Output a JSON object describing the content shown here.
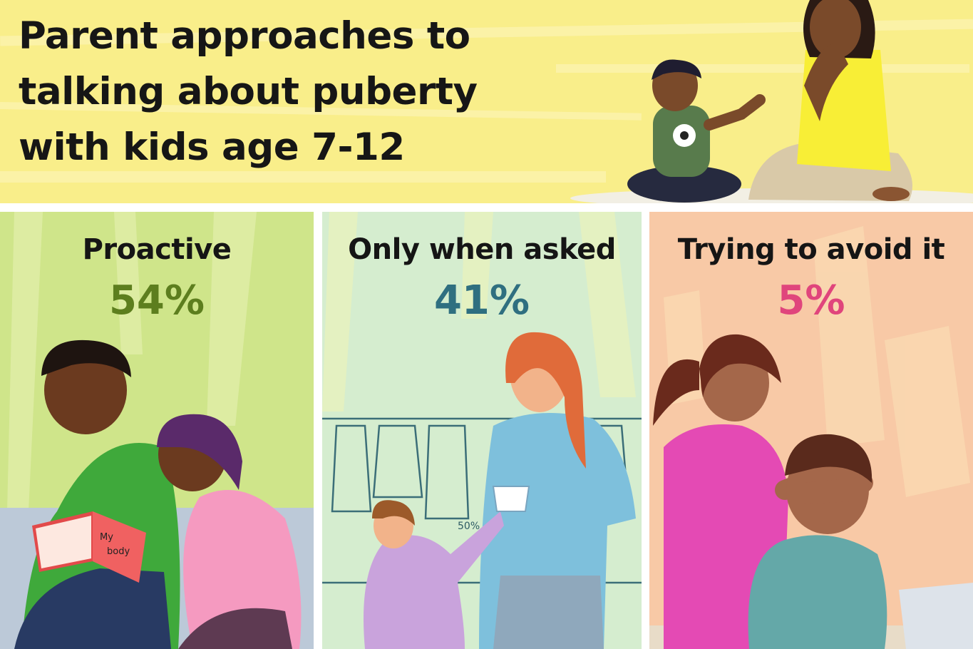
{
  "title": "Parent approaches to talking about puberty with kids age 7-12",
  "chart_data": {
    "type": "infographic",
    "title": "Parent approaches to talking about puberty with kids age 7-12",
    "categories": [
      "Proactive",
      "Only when asked",
      "Trying to avoid it"
    ],
    "values": [
      54,
      41,
      5
    ],
    "value_labels": [
      "54%",
      "41%",
      "5%"
    ],
    "unit": "%"
  },
  "panels": [
    {
      "label": "Proactive",
      "pct": "54%",
      "color": "#5d7e1e",
      "bg": "#cfe58a"
    },
    {
      "label": "Only when asked",
      "pct": "41%",
      "color": "#2f6f80",
      "bg": "#d5edcf"
    },
    {
      "label": "Trying to avoid it",
      "pct": "5%",
      "color": "#e0457c",
      "bg": "#f8c9a6"
    }
  ],
  "illustration": {
    "book_text_line1": "My",
    "book_text_line2": "body",
    "sale_tag": "50%"
  }
}
